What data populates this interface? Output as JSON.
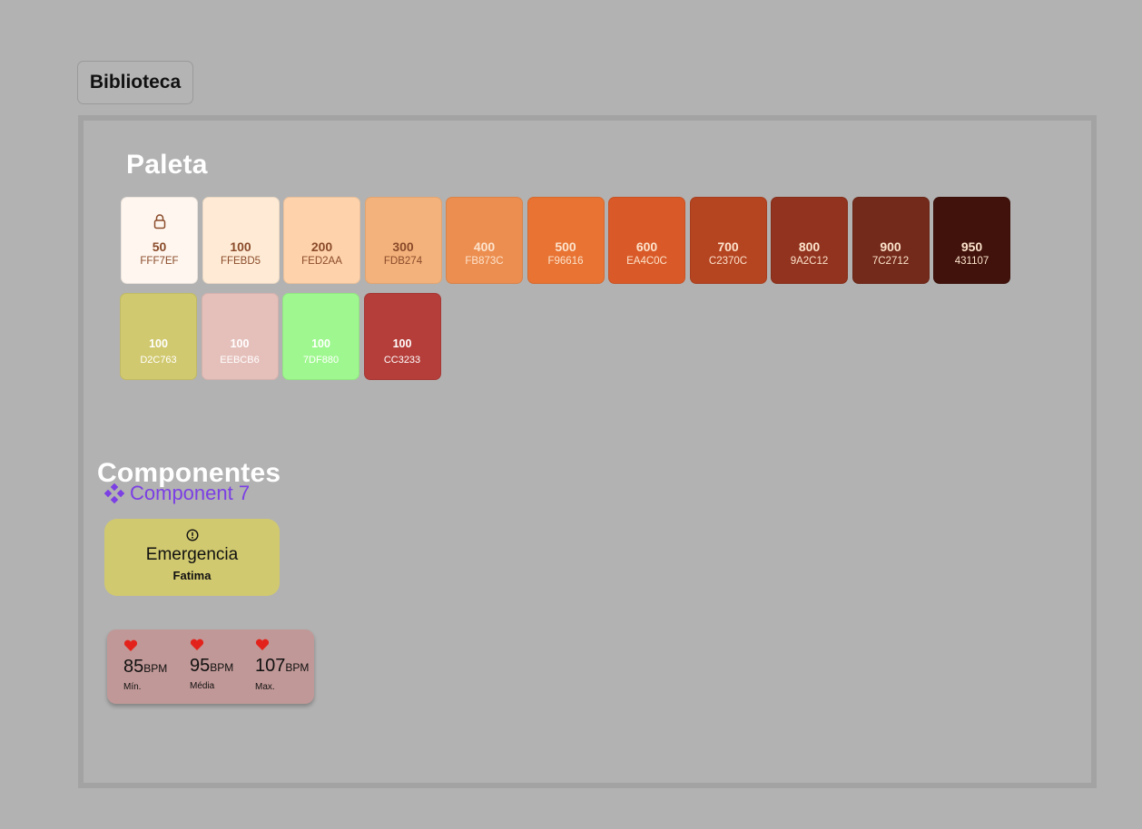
{
  "library_button": "Biblioteca",
  "palette": {
    "title": "Paleta",
    "swatches": [
      {
        "num": "50",
        "hex": "FFF7EF",
        "color": "#fff7ef",
        "text": "#8a4a2a",
        "locked": true
      },
      {
        "num": "100",
        "hex": "FFEBD5",
        "color": "#ffebd5",
        "text": "#8a4a2a"
      },
      {
        "num": "200",
        "hex": "FED2AA",
        "color": "#fed2aa",
        "text": "#8a4a2a"
      },
      {
        "num": "300",
        "hex": "FDB274",
        "color": "#f3b27b",
        "text": "#8a4a2a"
      },
      {
        "num": "400",
        "hex": "FB873C",
        "color": "#ec8e50",
        "text": "#fde3cc"
      },
      {
        "num": "500",
        "hex": "F96616",
        "color": "#e87333",
        "text": "#fde3cc"
      },
      {
        "num": "600",
        "hex": "EA4C0C",
        "color": "#d95a28",
        "text": "#fde3cc"
      },
      {
        "num": "700",
        "hex": "C2370C",
        "color": "#b54421",
        "text": "#fde3cc"
      },
      {
        "num": "800",
        "hex": "9A2C12",
        "color": "#91331e",
        "text": "#fde3cc"
      },
      {
        "num": "900",
        "hex": "7C2712",
        "color": "#732a1a",
        "text": "#fde3cc"
      },
      {
        "num": "950",
        "hex": "431107",
        "color": "#40120b",
        "text": "#fde3cc"
      }
    ],
    "accents": [
      {
        "num": "100",
        "hex": "D2C763",
        "color": "#d1c96f",
        "text": "#ffffff"
      },
      {
        "num": "100",
        "hex": "EEBCB6",
        "color": "#e5c0bb",
        "text": "#ffffff"
      },
      {
        "num": "100",
        "hex": "7DF880",
        "color": "#9ff88f",
        "text": "#ffffff"
      },
      {
        "num": "100",
        "hex": "CC3233",
        "color": "#b53e3a",
        "text": "#ffffff"
      }
    ]
  },
  "components": {
    "title": "Componentes",
    "component_label": "Component 7",
    "emergency": {
      "title": "Emergencia",
      "subtitle": "Fatima",
      "icon": "alert-circle-icon"
    },
    "bpm": {
      "unit": "BPM",
      "stats": [
        {
          "value": "85",
          "label": "Mín."
        },
        {
          "value": "95",
          "label": "Média"
        },
        {
          "value": "107",
          "label": "Max."
        }
      ]
    }
  }
}
